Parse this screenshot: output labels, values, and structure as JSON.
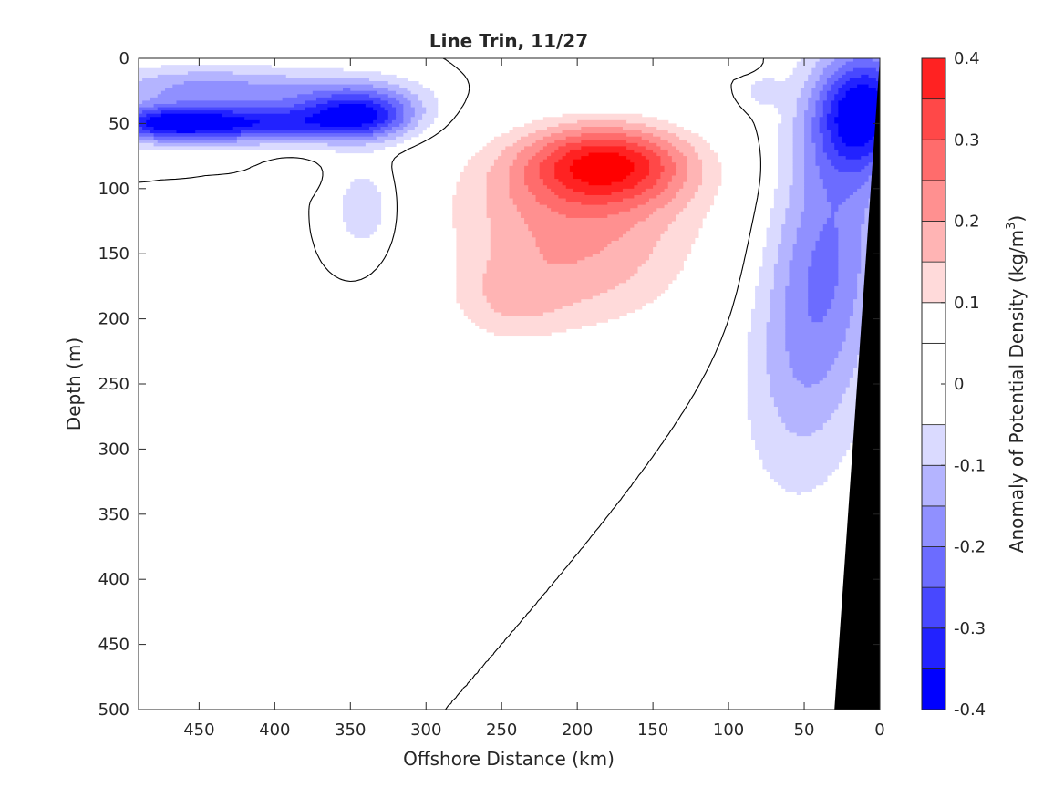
{
  "chart_data": {
    "type": "contour",
    "title": "Line Trin, 11/27",
    "xlabel": "Offshore Distance (km)",
    "ylabel": "Depth (m)",
    "xlim": [
      490,
      0
    ],
    "x_reversed": true,
    "ylim": [
      0,
      500
    ],
    "y_reversed": true,
    "xticks": [
      450,
      400,
      350,
      300,
      250,
      200,
      150,
      100,
      50,
      0
    ],
    "yticks": [
      0,
      50,
      100,
      150,
      200,
      250,
      300,
      350,
      400,
      450,
      500
    ],
    "colorbar": {
      "label": "Anomaly of Potential Density (kg/m",
      "label_sup": "3",
      "label_end": ")",
      "range": [
        -0.4,
        0.4
      ],
      "tick_values": [
        0.4,
        0.3,
        0.2,
        0.1,
        0,
        -0.1,
        -0.2,
        -0.3,
        -0.4
      ],
      "tick_labels": [
        "0.4",
        "0.3",
        "0.2",
        "0.1",
        "0",
        "-0.1",
        "-0.2",
        "-0.3",
        "-0.4"
      ],
      "levels": [
        -0.4,
        -0.35,
        -0.3,
        -0.25,
        -0.2,
        -0.15,
        -0.1,
        -0.05,
        0.05,
        0.1,
        0.15,
        0.2,
        0.25,
        0.3,
        0.35,
        0.4
      ],
      "colors": [
        "#0000ff",
        "#2222ff",
        "#4848ff",
        "#6c6cff",
        "#9090ff",
        "#b4b4ff",
        "#dadaff",
        "#ffffff",
        "#ffffff",
        "#ffdada",
        "#ffb4b4",
        "#ff9090",
        "#ff6c6c",
        "#ff4848",
        "#ff2222",
        "#ff0000"
      ]
    },
    "features": [
      {
        "name": "surface-negative-layer",
        "sign": "negative",
        "x_range": [
          490,
          290
        ],
        "y_range": [
          0,
          80
        ],
        "min_value": -0.35
      },
      {
        "name": "subsurface-positive-eddy",
        "sign": "positive",
        "x_range": [
          300,
          90
        ],
        "y_range": [
          45,
          240
        ],
        "max_value": 0.35,
        "center": [
          180,
          75
        ]
      },
      {
        "name": "nearshore-negative-core",
        "sign": "negative",
        "x_range": [
          100,
          0
        ],
        "y_range": [
          0,
          325
        ],
        "min_value": -0.35,
        "center": [
          20,
          40
        ]
      },
      {
        "name": "bottom-topography",
        "type": "mask",
        "color": "#000000",
        "points": [
          [
            0,
            0
          ],
          [
            0,
            500
          ],
          [
            30,
            500
          ]
        ]
      }
    ]
  }
}
